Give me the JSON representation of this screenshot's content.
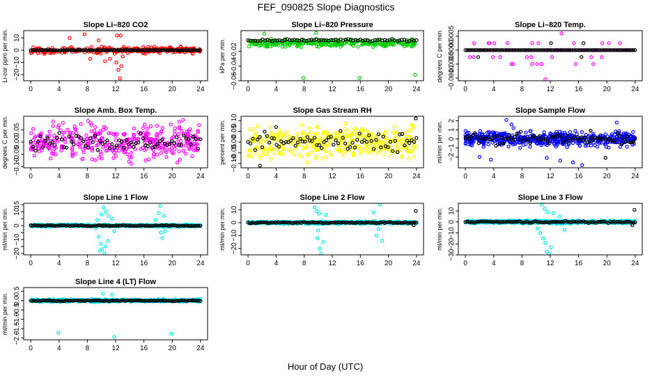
{
  "figure": {
    "title": "FEF_090825  Slope Diagnostics",
    "xlabel": "Hour of Day (UTC)"
  },
  "chart_data": [
    {
      "type": "scatter",
      "title": "Slope Li–820 CO2",
      "ylabel": "Li-cor ppm per min.",
      "color": "#ff0000",
      "xlim": [
        -1,
        25
      ],
      "ylim": [
        -25,
        16
      ],
      "xticks": [
        0,
        4,
        8,
        12,
        16,
        20,
        24
      ],
      "yticks": [
        -20,
        -10,
        0,
        10
      ],
      "ytick_labels": [
        "−20",
        "−10",
        "0",
        "10"
      ],
      "series": [
        {
          "name": "all",
          "spread": 3.5,
          "n": 260,
          "points": [
            [
              5.5,
              10
            ],
            [
              7.6,
              13
            ],
            [
              9.6,
              8
            ],
            [
              10.5,
              -9
            ],
            [
              11.2,
              -7
            ],
            [
              12.1,
              -10
            ],
            [
              12.4,
              -16
            ],
            [
              12.8,
              -13
            ],
            [
              12.2,
              12
            ],
            [
              12.7,
              12
            ],
            [
              12.6,
              -23
            ],
            [
              13.0,
              -5
            ],
            [
              8.4,
              -7
            ]
          ]
        },
        {
          "name": "hourly",
          "spread": 0.3,
          "n": 96,
          "points": []
        }
      ]
    },
    {
      "type": "scatter",
      "title": "Slope Li–820 Pressure",
      "ylabel": "kPa per min.",
      "color": "#00cc00",
      "xlim": [
        -1,
        25
      ],
      "ylim": [
        -0.06,
        0.008
      ],
      "xticks": [
        0,
        4,
        8,
        12,
        16,
        20,
        24
      ],
      "yticks": [
        -0.06,
        -0.04,
        -0.02
      ],
      "ytick_labels": [
        "−0.06",
        "−0.04",
        "−0.02"
      ],
      "series": [
        {
          "name": "all",
          "center": -0.009,
          "spread": 0.007,
          "n": 300,
          "points": [
            [
              7.9,
              -0.056
            ],
            [
              15.9,
              -0.056
            ],
            [
              23.8,
              -0.052
            ],
            [
              2.3,
              0.004
            ],
            [
              9.7,
              0.005
            ]
          ]
        },
        {
          "name": "hourly",
          "center": -0.005,
          "spread": 0.002,
          "n": 70,
          "points": []
        }
      ]
    },
    {
      "type": "scatter",
      "title": "Slope Li–820 Temp.",
      "ylabel": "degrees C per min.",
      "color": "#ff00ff",
      "xlim": [
        -1,
        25
      ],
      "ylim": [
        -0.0011,
        0.0007
      ],
      "xticks": [
        0,
        4,
        8,
        12,
        16,
        20,
        24
      ],
      "yticks": [
        -0.001,
        -0.0005,
        0,
        0.0005
      ],
      "ytick_labels": [
        "−0.0010",
        "−0.0005",
        "0.0000",
        "0.0005"
      ],
      "series": [
        {
          "name": "all",
          "levels": [
            0.00025,
            -0.00025,
            -0.0005
          ],
          "n": 60,
          "points": [
            [
              11.3,
              -0.00105
            ],
            [
              13.6,
              0.0006
            ]
          ]
        },
        {
          "name": "hourly",
          "n": 96,
          "points": [
            [
              1.8,
              -0.00025
            ],
            [
              16.4,
              -0.00025
            ],
            [
              16.7,
              0.00025
            ],
            [
              12.1,
              0.00025
            ]
          ]
        }
      ]
    },
    {
      "type": "scatter",
      "title": "Slope Amb. Box Temp.",
      "ylabel": "degrees C per min.",
      "color": "#ff00ff",
      "xlim": [
        -1,
        25
      ],
      "ylim": [
        -0.105,
        0.105
      ],
      "xticks": [
        0,
        4,
        8,
        12,
        16,
        20,
        24
      ],
      "yticks": [
        -0.1,
        -0.05,
        0,
        0.05
      ],
      "ytick_labels": [
        "−0.10",
        "−0.05",
        "0.00",
        "0.05"
      ],
      "series": [
        {
          "name": "all",
          "spread": 0.1,
          "n": 380,
          "points": []
        },
        {
          "name": "hourly",
          "spread": 0.05,
          "n": 72,
          "points": []
        }
      ]
    },
    {
      "type": "scatter",
      "title": "Slope Gas Stream RH",
      "ylabel": "percent per min.",
      "color": "#ffff00",
      "xlim": [
        -1,
        25
      ],
      "ylim": [
        -0.12,
        0.12
      ],
      "xticks": [
        0,
        4,
        8,
        12,
        16,
        20,
        24
      ],
      "yticks": [
        -0.1,
        -0.05,
        0,
        0.05,
        0.1
      ],
      "ytick_labels": [
        "−0.10",
        "−0.05",
        "0.00",
        "0.05",
        "0.10"
      ],
      "series": [
        {
          "name": "all",
          "spread": 0.11,
          "n": 380,
          "points": []
        },
        {
          "name": "hourly",
          "spread": 0.07,
          "n": 72,
          "points": [
            [
              23.9,
              0.11
            ],
            [
              1.7,
              -0.11
            ],
            [
              4.0,
              0.07
            ]
          ]
        }
      ]
    },
    {
      "type": "scatter",
      "title": "Slope Sample Flow",
      "ylabel": "ml/min per min.",
      "color": "#0000ff",
      "xlim": [
        -1,
        25
      ],
      "ylim": [
        -3.2,
        2.5
      ],
      "xticks": [
        0,
        4,
        8,
        12,
        16,
        20,
        24
      ],
      "yticks": [
        -2,
        -1,
        0,
        1,
        2
      ],
      "ytick_labels": [
        "−2",
        "−1",
        "0",
        "1",
        "2"
      ],
      "series": [
        {
          "name": "all",
          "spread": 1.1,
          "n": 520,
          "points": [
            [
              5.8,
              2.1
            ],
            [
              6.5,
              1.6
            ],
            [
              6.8,
              1.2
            ],
            [
              21.4,
              1.8
            ],
            [
              11.5,
              -2.1
            ],
            [
              15.2,
              -2.6
            ],
            [
              13.4,
              -2.4
            ],
            [
              16.5,
              -2.9
            ],
            [
              3.6,
              -2.3
            ],
            [
              2.0,
              -2.0
            ]
          ]
        },
        {
          "name": "hourly",
          "spread": 0.9,
          "n": 90,
          "points": [
            [
              19.8,
              -2.1
            ],
            [
              17.7,
              0.9
            ]
          ]
        }
      ]
    },
    {
      "type": "scatter",
      "title": "Slope Line 1 Flow",
      "ylabel": "ml/min per min.",
      "color": "#00e5ee",
      "xlim": [
        -1,
        25
      ],
      "ylim": [
        -21,
        16
      ],
      "xticks": [
        0,
        4,
        8,
        12,
        16,
        20,
        24
      ],
      "yticks": [
        -20,
        -15,
        -10,
        -5,
        0,
        5,
        10,
        15
      ],
      "ytick_labels": [
        "−20",
        "",
        "−10",
        "",
        "0",
        "",
        "10",
        "15"
      ],
      "series": [
        {
          "name": "all",
          "spread": 1.2,
          "n": 420,
          "points": [
            [
              9.2,
              -2
            ],
            [
              9.6,
              -8
            ],
            [
              9.9,
              -13
            ],
            [
              10.1,
              -17
            ],
            [
              10.4,
              -20
            ],
            [
              10.6,
              -15
            ],
            [
              10.9,
              -11
            ],
            [
              10.3,
              13
            ],
            [
              10.6,
              10
            ],
            [
              11.0,
              7
            ],
            [
              10.0,
              8
            ],
            [
              11.5,
              5
            ],
            [
              9.4,
              4
            ],
            [
              11.8,
              -4
            ],
            [
              9.8,
              -18
            ],
            [
              18.4,
              -5
            ],
            [
              18.6,
              -9
            ],
            [
              18.3,
              14
            ],
            [
              18.8,
              7
            ],
            [
              17.6,
              4
            ],
            [
              19.0,
              -4
            ],
            [
              18.1,
              9
            ]
          ]
        },
        {
          "name": "hourly",
          "spread": 0.6,
          "n": 96,
          "points": []
        }
      ]
    },
    {
      "type": "scatter",
      "title": "Slope Line 2 Flow",
      "ylabel": "ml/min per min.",
      "color": "#00e5ee",
      "xlim": [
        -1,
        25
      ],
      "ylim": [
        -25,
        15
      ],
      "xticks": [
        0,
        4,
        8,
        12,
        16,
        20,
        24
      ],
      "yticks": [
        -20,
        -10,
        0,
        10
      ],
      "ytick_labels": [
        "−20",
        "−10",
        "0",
        "10"
      ],
      "series": [
        {
          "name": "all",
          "spread": 1.5,
          "n": 420,
          "points": [
            [
              9.5,
              12
            ],
            [
              9.8,
              9
            ],
            [
              10.1,
              7
            ],
            [
              9.9,
              -12
            ],
            [
              10.2,
              -20
            ],
            [
              10.4,
              -24
            ],
            [
              10.7,
              -15
            ],
            [
              10.0,
              -6
            ],
            [
              11.1,
              6
            ],
            [
              18.8,
              14
            ],
            [
              18.3,
              -10
            ],
            [
              18.6,
              -5
            ],
            [
              17.9,
              8
            ],
            [
              19.1,
              -14
            ]
          ]
        },
        {
          "name": "hourly",
          "spread": 0.8,
          "n": 96,
          "points": [
            [
              23.9,
              9
            ],
            [
              23.6,
              -2
            ]
          ]
        }
      ]
    },
    {
      "type": "scatter",
      "title": "Slope Line 3 Flow",
      "ylabel": "ml/min per min.",
      "color": "#00e5ee",
      "xlim": [
        -1,
        25
      ],
      "ylim": [
        -30,
        17
      ],
      "xticks": [
        0,
        4,
        8,
        12,
        16,
        20,
        24
      ],
      "yticks": [
        -30,
        -20,
        -10,
        0,
        10
      ],
      "ytick_labels": [
        "−30",
        "−20",
        "−10",
        "0",
        "10"
      ],
      "series": [
        {
          "name": "all",
          "spread": 2.0,
          "n": 420,
          "points": [
            [
              10.8,
              16
            ],
            [
              11.2,
              12
            ],
            [
              11.6,
              9
            ],
            [
              10.6,
              -10
            ],
            [
              11.0,
              -15
            ],
            [
              11.3,
              -19
            ],
            [
              11.5,
              -27
            ],
            [
              11.8,
              -29
            ],
            [
              12.1,
              -23
            ],
            [
              10.2,
              -6
            ],
            [
              12.4,
              8
            ],
            [
              14.0,
              -7
            ],
            [
              13.3,
              5
            ]
          ]
        },
        {
          "name": "hourly",
          "spread": 1.2,
          "n": 96,
          "points": [
            [
              23.9,
              11
            ],
            [
              23.6,
              -3
            ]
          ]
        }
      ]
    },
    {
      "type": "scatter",
      "title": "Slope Line 4 (LT) Flow",
      "ylabel": "ml/min per min.",
      "color": "#00e5ee",
      "xlim": [
        -1,
        25
      ],
      "ylim": [
        -2.1,
        0.7
      ],
      "xticks": [
        0,
        4,
        8,
        12,
        16,
        20,
        24
      ],
      "yticks": [
        -2,
        -1.5,
        -1,
        -0.5,
        0,
        0.5
      ],
      "ytick_labels": [
        "−2.0",
        "−1.5",
        "−1.0",
        "−0.5",
        "0.0",
        "0.5"
      ],
      "series": [
        {
          "name": "all",
          "spread": 0.1,
          "n": 420,
          "points": [
            [
              3.9,
              -1.72
            ],
            [
              11.8,
              -1.95
            ],
            [
              19.9,
              -1.77
            ],
            [
              10.2,
              0.38
            ],
            [
              11.5,
              0.32
            ]
          ]
        },
        {
          "name": "hourly",
          "spread": 0.04,
          "n": 96,
          "points": []
        }
      ]
    }
  ]
}
